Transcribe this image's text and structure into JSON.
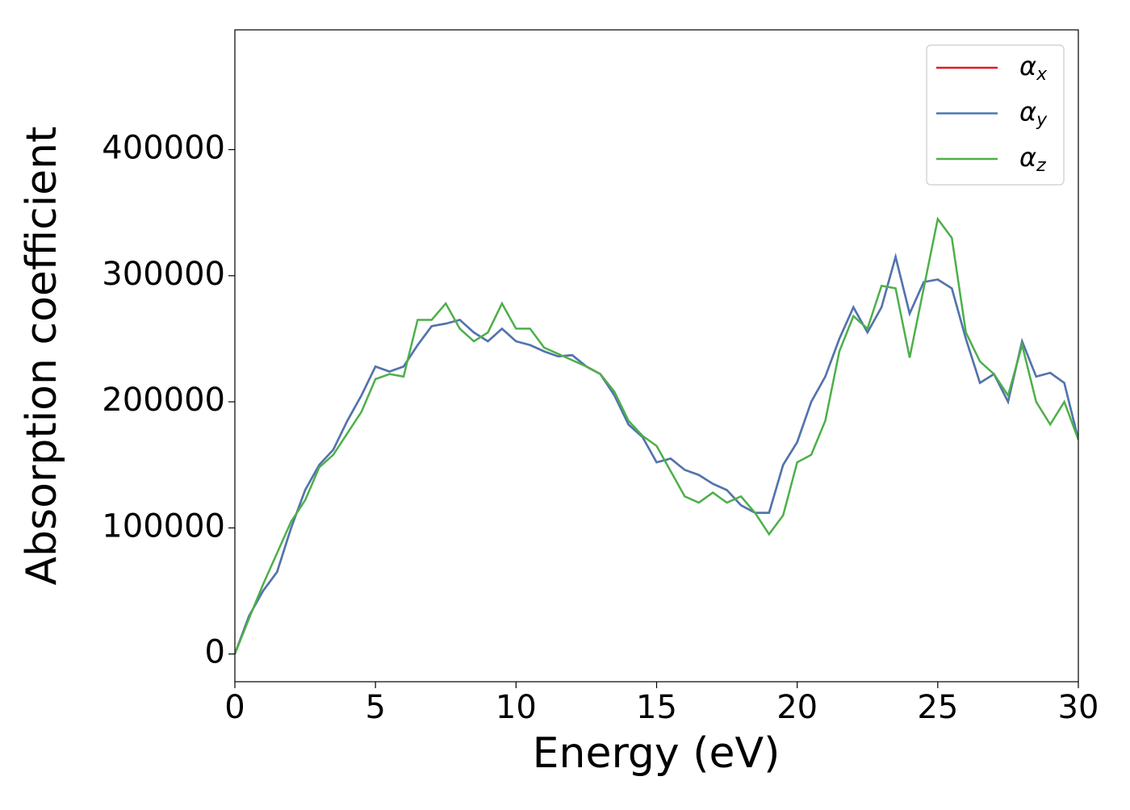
{
  "chart_data": {
    "type": "line",
    "xlabel": "Energy (eV)",
    "ylabel": "Absorption coefficient",
    "xlim": [
      0,
      30
    ],
    "ylim": [
      -22000,
      495000
    ],
    "xticks": [
      0,
      5,
      10,
      15,
      20,
      25,
      30
    ],
    "yticks": [
      0,
      100000,
      200000,
      300000,
      400000
    ],
    "legend": "upper right",
    "x": [
      0,
      0.5,
      1,
      1.5,
      2,
      2.5,
      3,
      3.5,
      4,
      4.5,
      5,
      5.5,
      6,
      6.5,
      7,
      7.5,
      8,
      8.5,
      9,
      9.5,
      10,
      10.5,
      11,
      11.5,
      12,
      12.5,
      13,
      13.5,
      14,
      14.5,
      15,
      15.5,
      16,
      16.5,
      17,
      17.5,
      18,
      18.5,
      19,
      19.5,
      20,
      20.5,
      21,
      21.5,
      22,
      22.5,
      23,
      23.5,
      24,
      24.5,
      25,
      25.5,
      26,
      26.5,
      27,
      27.5,
      28,
      28.5,
      29,
      29.5,
      30
    ],
    "series": [
      {
        "name": "αx",
        "color": "#e41a1c",
        "values": [
          0,
          30000,
          50000,
          65000,
          100000,
          130000,
          150000,
          162000,
          185000,
          205000,
          228000,
          224000,
          228000,
          245000,
          260000,
          262000,
          265000,
          255000,
          248000,
          258000,
          248000,
          245000,
          240000,
          236000,
          237000,
          228000,
          222000,
          205000,
          182000,
          172000,
          152000,
          155000,
          146000,
          142000,
          135000,
          130000,
          118000,
          112000,
          112000,
          150000,
          168000,
          200000,
          220000,
          250000,
          275000,
          255000,
          275000,
          315000,
          270000,
          295000,
          297000,
          290000,
          250000,
          215000,
          222000,
          200000,
          248000,
          220000,
          223000,
          215000,
          170000
        ]
      },
      {
        "name": "αy",
        "color": "#4a78b4",
        "values": [
          0,
          30000,
          50000,
          65000,
          100000,
          130000,
          150000,
          162000,
          185000,
          205000,
          228000,
          224000,
          228000,
          245000,
          260000,
          262000,
          265000,
          255000,
          248000,
          258000,
          248000,
          245000,
          240000,
          236000,
          237000,
          228000,
          222000,
          205000,
          182000,
          172000,
          152000,
          155000,
          146000,
          142000,
          135000,
          130000,
          118000,
          112000,
          112000,
          150000,
          168000,
          200000,
          220000,
          250000,
          275000,
          255000,
          275000,
          315000,
          270000,
          295000,
          297000,
          290000,
          250000,
          215000,
          222000,
          200000,
          248000,
          220000,
          223000,
          215000,
          170000
        ]
      },
      {
        "name": "αz",
        "color": "#4daf4a",
        "values": [
          0,
          28000,
          55000,
          80000,
          105000,
          122000,
          148000,
          158000,
          175000,
          192000,
          218000,
          222000,
          220000,
          265000,
          265000,
          278000,
          258000,
          248000,
          255000,
          278000,
          258000,
          258000,
          243000,
          238000,
          233000,
          228000,
          222000,
          208000,
          185000,
          173000,
          165000,
          145000,
          125000,
          120000,
          128000,
          120000,
          125000,
          112000,
          95000,
          110000,
          152000,
          158000,
          185000,
          240000,
          268000,
          258000,
          292000,
          290000,
          235000,
          290000,
          345000,
          330000,
          255000,
          232000,
          222000,
          205000,
          245000,
          200000,
          182000,
          200000,
          170000
        ]
      }
    ]
  }
}
